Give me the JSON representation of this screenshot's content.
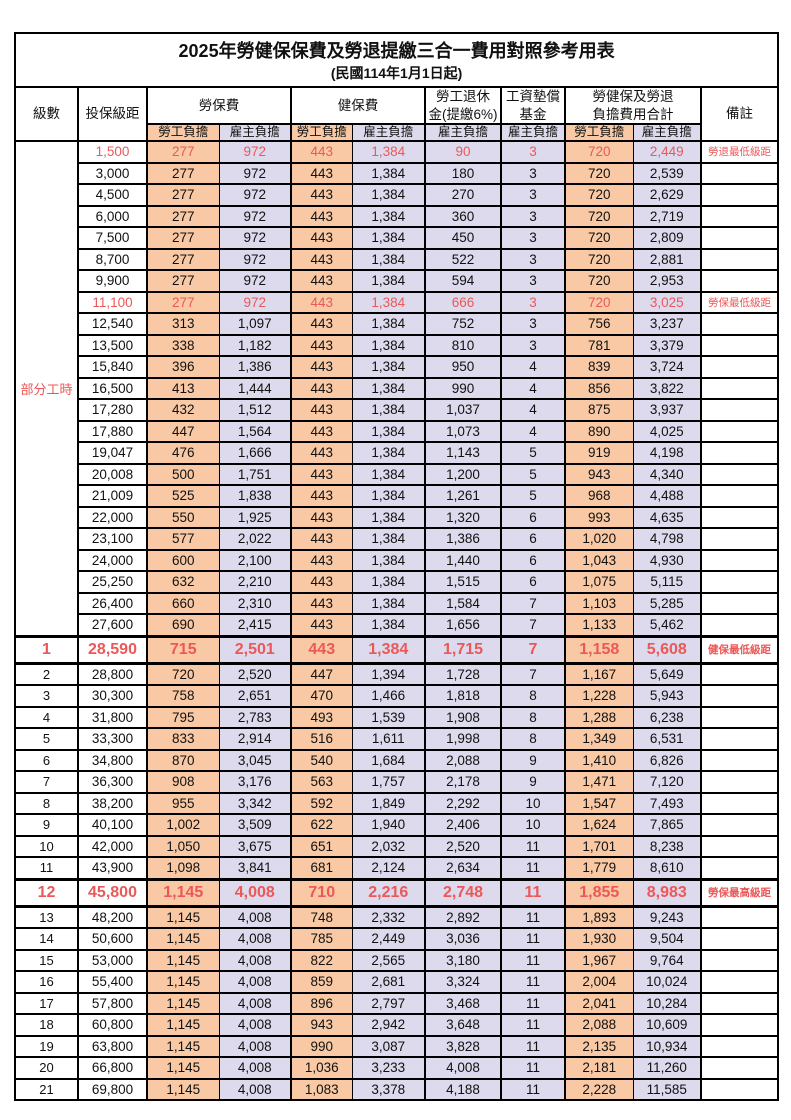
{
  "title": "2025年勞健保保費及勞退提繳三合一費用對照參考用表",
  "subtitle": "(民國114年1月1日起)",
  "header": {
    "level_label": "級數",
    "bracket_label": "投保級距",
    "labor_group": "勞保費",
    "health_group": "健保費",
    "pension_line1": "勞工退休",
    "pension_line2": "金(提繳6%)",
    "wage_fund_line1": "工資墊償",
    "wage_fund_line2": "基金",
    "total_line1": "勞健保及勞退",
    "total_line2": "負擔費用合計",
    "remark_label": "備註",
    "employee_label": "勞工負擔",
    "employer_label": "雇主負擔"
  },
  "part_time_label": "部分工時",
  "part_time_rowspan": 23,
  "colors": {
    "employee_bg": "#F8C9A4",
    "employer_bg": "#DCDAEC",
    "red_text": "#EC5858",
    "remark_red": "#EE4040",
    "border": "#000000"
  },
  "rows": [
    {
      "level": "",
      "bracket": "1,500",
      "li_emp": "277",
      "li_er": "972",
      "hi_emp": "443",
      "hi_er": "1,384",
      "pension": "90",
      "fund": "3",
      "tot_emp": "720",
      "tot_er": "2,449",
      "remark": "勞退最低級距",
      "red": true,
      "emph": false
    },
    {
      "level": "",
      "bracket": "3,000",
      "li_emp": "277",
      "li_er": "972",
      "hi_emp": "443",
      "hi_er": "1,384",
      "pension": "180",
      "fund": "3",
      "tot_emp": "720",
      "tot_er": "2,539",
      "remark": "",
      "red": false,
      "emph": false
    },
    {
      "level": "",
      "bracket": "4,500",
      "li_emp": "277",
      "li_er": "972",
      "hi_emp": "443",
      "hi_er": "1,384",
      "pension": "270",
      "fund": "3",
      "tot_emp": "720",
      "tot_er": "2,629",
      "remark": "",
      "red": false,
      "emph": false
    },
    {
      "level": "",
      "bracket": "6,000",
      "li_emp": "277",
      "li_er": "972",
      "hi_emp": "443",
      "hi_er": "1,384",
      "pension": "360",
      "fund": "3",
      "tot_emp": "720",
      "tot_er": "2,719",
      "remark": "",
      "red": false,
      "emph": false
    },
    {
      "level": "",
      "bracket": "7,500",
      "li_emp": "277",
      "li_er": "972",
      "hi_emp": "443",
      "hi_er": "1,384",
      "pension": "450",
      "fund": "3",
      "tot_emp": "720",
      "tot_er": "2,809",
      "remark": "",
      "red": false,
      "emph": false
    },
    {
      "level": "",
      "bracket": "8,700",
      "li_emp": "277",
      "li_er": "972",
      "hi_emp": "443",
      "hi_er": "1,384",
      "pension": "522",
      "fund": "3",
      "tot_emp": "720",
      "tot_er": "2,881",
      "remark": "",
      "red": false,
      "emph": false
    },
    {
      "level": "",
      "bracket": "9,900",
      "li_emp": "277",
      "li_er": "972",
      "hi_emp": "443",
      "hi_er": "1,384",
      "pension": "594",
      "fund": "3",
      "tot_emp": "720",
      "tot_er": "2,953",
      "remark": "",
      "red": false,
      "emph": false
    },
    {
      "level": "",
      "bracket": "11,100",
      "li_emp": "277",
      "li_er": "972",
      "hi_emp": "443",
      "hi_er": "1,384",
      "pension": "666",
      "fund": "3",
      "tot_emp": "720",
      "tot_er": "3,025",
      "remark": "勞保最低級距",
      "red": true,
      "emph": false
    },
    {
      "level": "",
      "bracket": "12,540",
      "li_emp": "313",
      "li_er": "1,097",
      "hi_emp": "443",
      "hi_er": "1,384",
      "pension": "752",
      "fund": "3",
      "tot_emp": "756",
      "tot_er": "3,237",
      "remark": "",
      "red": false,
      "emph": false
    },
    {
      "level": "",
      "bracket": "13,500",
      "li_emp": "338",
      "li_er": "1,182",
      "hi_emp": "443",
      "hi_er": "1,384",
      "pension": "810",
      "fund": "3",
      "tot_emp": "781",
      "tot_er": "3,379",
      "remark": "",
      "red": false,
      "emph": false
    },
    {
      "level": "",
      "bracket": "15,840",
      "li_emp": "396",
      "li_er": "1,386",
      "hi_emp": "443",
      "hi_er": "1,384",
      "pension": "950",
      "fund": "4",
      "tot_emp": "839",
      "tot_er": "3,724",
      "remark": "",
      "red": false,
      "emph": false
    },
    {
      "level": "",
      "bracket": "16,500",
      "li_emp": "413",
      "li_er": "1,444",
      "hi_emp": "443",
      "hi_er": "1,384",
      "pension": "990",
      "fund": "4",
      "tot_emp": "856",
      "tot_er": "3,822",
      "remark": "",
      "red": false,
      "emph": false
    },
    {
      "level": "",
      "bracket": "17,280",
      "li_emp": "432",
      "li_er": "1,512",
      "hi_emp": "443",
      "hi_er": "1,384",
      "pension": "1,037",
      "fund": "4",
      "tot_emp": "875",
      "tot_er": "3,937",
      "remark": "",
      "red": false,
      "emph": false
    },
    {
      "level": "",
      "bracket": "17,880",
      "li_emp": "447",
      "li_er": "1,564",
      "hi_emp": "443",
      "hi_er": "1,384",
      "pension": "1,073",
      "fund": "4",
      "tot_emp": "890",
      "tot_er": "4,025",
      "remark": "",
      "red": false,
      "emph": false
    },
    {
      "level": "",
      "bracket": "19,047",
      "li_emp": "476",
      "li_er": "1,666",
      "hi_emp": "443",
      "hi_er": "1,384",
      "pension": "1,143",
      "fund": "5",
      "tot_emp": "919",
      "tot_er": "4,198",
      "remark": "",
      "red": false,
      "emph": false
    },
    {
      "level": "",
      "bracket": "20,008",
      "li_emp": "500",
      "li_er": "1,751",
      "hi_emp": "443",
      "hi_er": "1,384",
      "pension": "1,200",
      "fund": "5",
      "tot_emp": "943",
      "tot_er": "4,340",
      "remark": "",
      "red": false,
      "emph": false
    },
    {
      "level": "",
      "bracket": "21,009",
      "li_emp": "525",
      "li_er": "1,838",
      "hi_emp": "443",
      "hi_er": "1,384",
      "pension": "1,261",
      "fund": "5",
      "tot_emp": "968",
      "tot_er": "4,488",
      "remark": "",
      "red": false,
      "emph": false
    },
    {
      "level": "",
      "bracket": "22,000",
      "li_emp": "550",
      "li_er": "1,925",
      "hi_emp": "443",
      "hi_er": "1,384",
      "pension": "1,320",
      "fund": "6",
      "tot_emp": "993",
      "tot_er": "4,635",
      "remark": "",
      "red": false,
      "emph": false
    },
    {
      "level": "",
      "bracket": "23,100",
      "li_emp": "577",
      "li_er": "2,022",
      "hi_emp": "443",
      "hi_er": "1,384",
      "pension": "1,386",
      "fund": "6",
      "tot_emp": "1,020",
      "tot_er": "4,798",
      "remark": "",
      "red": false,
      "emph": false
    },
    {
      "level": "",
      "bracket": "24,000",
      "li_emp": "600",
      "li_er": "2,100",
      "hi_emp": "443",
      "hi_er": "1,384",
      "pension": "1,440",
      "fund": "6",
      "tot_emp": "1,043",
      "tot_er": "4,930",
      "remark": "",
      "red": false,
      "emph": false
    },
    {
      "level": "",
      "bracket": "25,250",
      "li_emp": "632",
      "li_er": "2,210",
      "hi_emp": "443",
      "hi_er": "1,384",
      "pension": "1,515",
      "fund": "6",
      "tot_emp": "1,075",
      "tot_er": "5,115",
      "remark": "",
      "red": false,
      "emph": false
    },
    {
      "level": "",
      "bracket": "26,400",
      "li_emp": "660",
      "li_er": "2,310",
      "hi_emp": "443",
      "hi_er": "1,384",
      "pension": "1,584",
      "fund": "7",
      "tot_emp": "1,103",
      "tot_er": "5,285",
      "remark": "",
      "red": false,
      "emph": false
    },
    {
      "level": "",
      "bracket": "27,600",
      "li_emp": "690",
      "li_er": "2,415",
      "hi_emp": "443",
      "hi_er": "1,384",
      "pension": "1,656",
      "fund": "7",
      "tot_emp": "1,133",
      "tot_er": "5,462",
      "remark": "",
      "red": false,
      "emph": false
    },
    {
      "level": "1",
      "bracket": "28,590",
      "li_emp": "715",
      "li_er": "2,501",
      "hi_emp": "443",
      "hi_er": "1,384",
      "pension": "1,715",
      "fund": "7",
      "tot_emp": "1,158",
      "tot_er": "5,608",
      "remark": "健保最低級距",
      "red": true,
      "emph": true
    },
    {
      "level": "2",
      "bracket": "28,800",
      "li_emp": "720",
      "li_er": "2,520",
      "hi_emp": "447",
      "hi_er": "1,394",
      "pension": "1,728",
      "fund": "7",
      "tot_emp": "1,167",
      "tot_er": "5,649",
      "remark": "",
      "red": false,
      "emph": false
    },
    {
      "level": "3",
      "bracket": "30,300",
      "li_emp": "758",
      "li_er": "2,651",
      "hi_emp": "470",
      "hi_er": "1,466",
      "pension": "1,818",
      "fund": "8",
      "tot_emp": "1,228",
      "tot_er": "5,943",
      "remark": "",
      "red": false,
      "emph": false
    },
    {
      "level": "4",
      "bracket": "31,800",
      "li_emp": "795",
      "li_er": "2,783",
      "hi_emp": "493",
      "hi_er": "1,539",
      "pension": "1,908",
      "fund": "8",
      "tot_emp": "1,288",
      "tot_er": "6,238",
      "remark": "",
      "red": false,
      "emph": false
    },
    {
      "level": "5",
      "bracket": "33,300",
      "li_emp": "833",
      "li_er": "2,914",
      "hi_emp": "516",
      "hi_er": "1,611",
      "pension": "1,998",
      "fund": "8",
      "tot_emp": "1,349",
      "tot_er": "6,531",
      "remark": "",
      "red": false,
      "emph": false
    },
    {
      "level": "6",
      "bracket": "34,800",
      "li_emp": "870",
      "li_er": "3,045",
      "hi_emp": "540",
      "hi_er": "1,684",
      "pension": "2,088",
      "fund": "9",
      "tot_emp": "1,410",
      "tot_er": "6,826",
      "remark": "",
      "red": false,
      "emph": false
    },
    {
      "level": "7",
      "bracket": "36,300",
      "li_emp": "908",
      "li_er": "3,176",
      "hi_emp": "563",
      "hi_er": "1,757",
      "pension": "2,178",
      "fund": "9",
      "tot_emp": "1,471",
      "tot_er": "7,120",
      "remark": "",
      "red": false,
      "emph": false
    },
    {
      "level": "8",
      "bracket": "38,200",
      "li_emp": "955",
      "li_er": "3,342",
      "hi_emp": "592",
      "hi_er": "1,849",
      "pension": "2,292",
      "fund": "10",
      "tot_emp": "1,547",
      "tot_er": "7,493",
      "remark": "",
      "red": false,
      "emph": false
    },
    {
      "level": "9",
      "bracket": "40,100",
      "li_emp": "1,002",
      "li_er": "3,509",
      "hi_emp": "622",
      "hi_er": "1,940",
      "pension": "2,406",
      "fund": "10",
      "tot_emp": "1,624",
      "tot_er": "7,865",
      "remark": "",
      "red": false,
      "emph": false
    },
    {
      "level": "10",
      "bracket": "42,000",
      "li_emp": "1,050",
      "li_er": "3,675",
      "hi_emp": "651",
      "hi_er": "2,032",
      "pension": "2,520",
      "fund": "11",
      "tot_emp": "1,701",
      "tot_er": "8,238",
      "remark": "",
      "red": false,
      "emph": false
    },
    {
      "level": "11",
      "bracket": "43,900",
      "li_emp": "1,098",
      "li_er": "3,841",
      "hi_emp": "681",
      "hi_er": "2,124",
      "pension": "2,634",
      "fund": "11",
      "tot_emp": "1,779",
      "tot_er": "8,610",
      "remark": "",
      "red": false,
      "emph": false
    },
    {
      "level": "12",
      "bracket": "45,800",
      "li_emp": "1,145",
      "li_er": "4,008",
      "hi_emp": "710",
      "hi_er": "2,216",
      "pension": "2,748",
      "fund": "11",
      "tot_emp": "1,855",
      "tot_er": "8,983",
      "remark": "勞保最高級距",
      "red": true,
      "emph": true
    },
    {
      "level": "13",
      "bracket": "48,200",
      "li_emp": "1,145",
      "li_er": "4,008",
      "hi_emp": "748",
      "hi_er": "2,332",
      "pension": "2,892",
      "fund": "11",
      "tot_emp": "1,893",
      "tot_er": "9,243",
      "remark": "",
      "red": false,
      "emph": false
    },
    {
      "level": "14",
      "bracket": "50,600",
      "li_emp": "1,145",
      "li_er": "4,008",
      "hi_emp": "785",
      "hi_er": "2,449",
      "pension": "3,036",
      "fund": "11",
      "tot_emp": "1,930",
      "tot_er": "9,504",
      "remark": "",
      "red": false,
      "emph": false
    },
    {
      "level": "15",
      "bracket": "53,000",
      "li_emp": "1,145",
      "li_er": "4,008",
      "hi_emp": "822",
      "hi_er": "2,565",
      "pension": "3,180",
      "fund": "11",
      "tot_emp": "1,967",
      "tot_er": "9,764",
      "remark": "",
      "red": false,
      "emph": false
    },
    {
      "level": "16",
      "bracket": "55,400",
      "li_emp": "1,145",
      "li_er": "4,008",
      "hi_emp": "859",
      "hi_er": "2,681",
      "pension": "3,324",
      "fund": "11",
      "tot_emp": "2,004",
      "tot_er": "10,024",
      "remark": "",
      "red": false,
      "emph": false
    },
    {
      "level": "17",
      "bracket": "57,800",
      "li_emp": "1,145",
      "li_er": "4,008",
      "hi_emp": "896",
      "hi_er": "2,797",
      "pension": "3,468",
      "fund": "11",
      "tot_emp": "2,041",
      "tot_er": "10,284",
      "remark": "",
      "red": false,
      "emph": false
    },
    {
      "level": "18",
      "bracket": "60,800",
      "li_emp": "1,145",
      "li_er": "4,008",
      "hi_emp": "943",
      "hi_er": "2,942",
      "pension": "3,648",
      "fund": "11",
      "tot_emp": "2,088",
      "tot_er": "10,609",
      "remark": "",
      "red": false,
      "emph": false
    },
    {
      "level": "19",
      "bracket": "63,800",
      "li_emp": "1,145",
      "li_er": "4,008",
      "hi_emp": "990",
      "hi_er": "3,087",
      "pension": "3,828",
      "fund": "11",
      "tot_emp": "2,135",
      "tot_er": "10,934",
      "remark": "",
      "red": false,
      "emph": false
    },
    {
      "level": "20",
      "bracket": "66,800",
      "li_emp": "1,145",
      "li_er": "4,008",
      "hi_emp": "1,036",
      "hi_er": "3,233",
      "pension": "4,008",
      "fund": "11",
      "tot_emp": "2,181",
      "tot_er": "11,260",
      "remark": "",
      "red": false,
      "emph": false
    },
    {
      "level": "21",
      "bracket": "69,800",
      "li_emp": "1,145",
      "li_er": "4,008",
      "hi_emp": "1,083",
      "hi_er": "3,378",
      "pension": "4,188",
      "fund": "11",
      "tot_emp": "2,228",
      "tot_er": "11,585",
      "remark": "",
      "red": false,
      "emph": false
    }
  ]
}
